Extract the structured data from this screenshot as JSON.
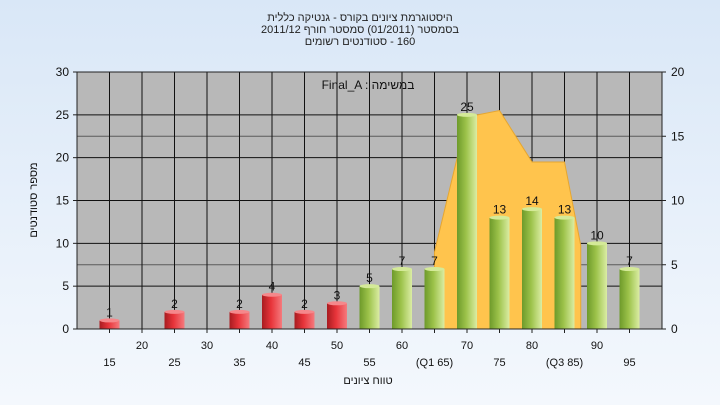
{
  "chart_data": {
    "type": "bar",
    "title_lines": [
      "היסטוגרמת ציונים בקורס - גנטיקה כללית",
      "בסמסטר  (01/2011)  סמסטר חורף 2011/12",
      "160 - סטודנטים רשומים"
    ],
    "annotation": "Final_A : במשימה",
    "xlabel": "טווח ציונים",
    "ylabel": "מספר סטודנטים",
    "ylim": [
      0,
      30
    ],
    "yticks": [
      0,
      5,
      10,
      15,
      20,
      25,
      30
    ],
    "y2lim": [
      0,
      20
    ],
    "y2ticks": [
      0,
      5,
      10,
      15,
      20
    ],
    "grid": true,
    "xlim": [
      10,
      100
    ],
    "xtick_labels": [
      {
        "x": 15,
        "label": "15",
        "row": 2
      },
      {
        "x": 20,
        "label": "20",
        "row": 1
      },
      {
        "x": 25,
        "label": "25",
        "row": 2
      },
      {
        "x": 30,
        "label": "30",
        "row": 1
      },
      {
        "x": 35,
        "label": "35",
        "row": 2
      },
      {
        "x": 40,
        "label": "40",
        "row": 1
      },
      {
        "x": 45,
        "label": "45",
        "row": 2
      },
      {
        "x": 50,
        "label": "50",
        "row": 1
      },
      {
        "x": 55,
        "label": "55",
        "row": 2
      },
      {
        "x": 60,
        "label": "60",
        "row": 1
      },
      {
        "x": 65,
        "label": "(Q1 65)",
        "row": 2
      },
      {
        "x": 70,
        "label": "70",
        "row": 1
      },
      {
        "x": 75,
        "label": "75",
        "row": 2
      },
      {
        "x": 80,
        "label": "80",
        "row": 1
      },
      {
        "x": 85,
        "label": "(Q3 85)",
        "row": 2
      },
      {
        "x": 90,
        "label": "90",
        "row": 1
      },
      {
        "x": 95,
        "label": "95",
        "row": 2
      }
    ],
    "bars": [
      {
        "x": 15,
        "value": 1,
        "color": "red"
      },
      {
        "x": 25,
        "value": 2,
        "color": "red"
      },
      {
        "x": 35,
        "value": 2,
        "color": "red"
      },
      {
        "x": 40,
        "value": 4,
        "color": "red"
      },
      {
        "x": 45,
        "value": 2,
        "color": "red"
      },
      {
        "x": 50,
        "value": 3,
        "color": "red"
      },
      {
        "x": 55,
        "value": 5,
        "color": "green"
      },
      {
        "x": 60,
        "value": 7,
        "color": "green"
      },
      {
        "x": 65,
        "value": 7,
        "color": "green"
      },
      {
        "x": 70,
        "value": 25,
        "color": "green"
      },
      {
        "x": 75,
        "value": 13,
        "color": "green"
      },
      {
        "x": 80,
        "value": 14,
        "color": "green"
      },
      {
        "x": 85,
        "value": 13,
        "color": "green"
      },
      {
        "x": 90,
        "value": 10,
        "color": "green"
      },
      {
        "x": 95,
        "value": 7,
        "color": "green"
      }
    ],
    "area_series": {
      "axis": "secondary",
      "points": [
        {
          "x": 65,
          "y": 0
        },
        {
          "x": 65,
          "y": 6
        },
        {
          "x": 70,
          "y": 16.5
        },
        {
          "x": 75,
          "y": 17
        },
        {
          "x": 80,
          "y": 13
        },
        {
          "x": 85,
          "y": 13
        },
        {
          "x": 87.5,
          "y": 6.5
        },
        {
          "x": 87.5,
          "y": 0
        }
      ]
    },
    "colors": {
      "plot_bg": "#b8b8b8",
      "grid": "#111111",
      "red_bar": "#e8343a",
      "green_bar": "#9cc24a",
      "area": "#ffc44d"
    }
  }
}
